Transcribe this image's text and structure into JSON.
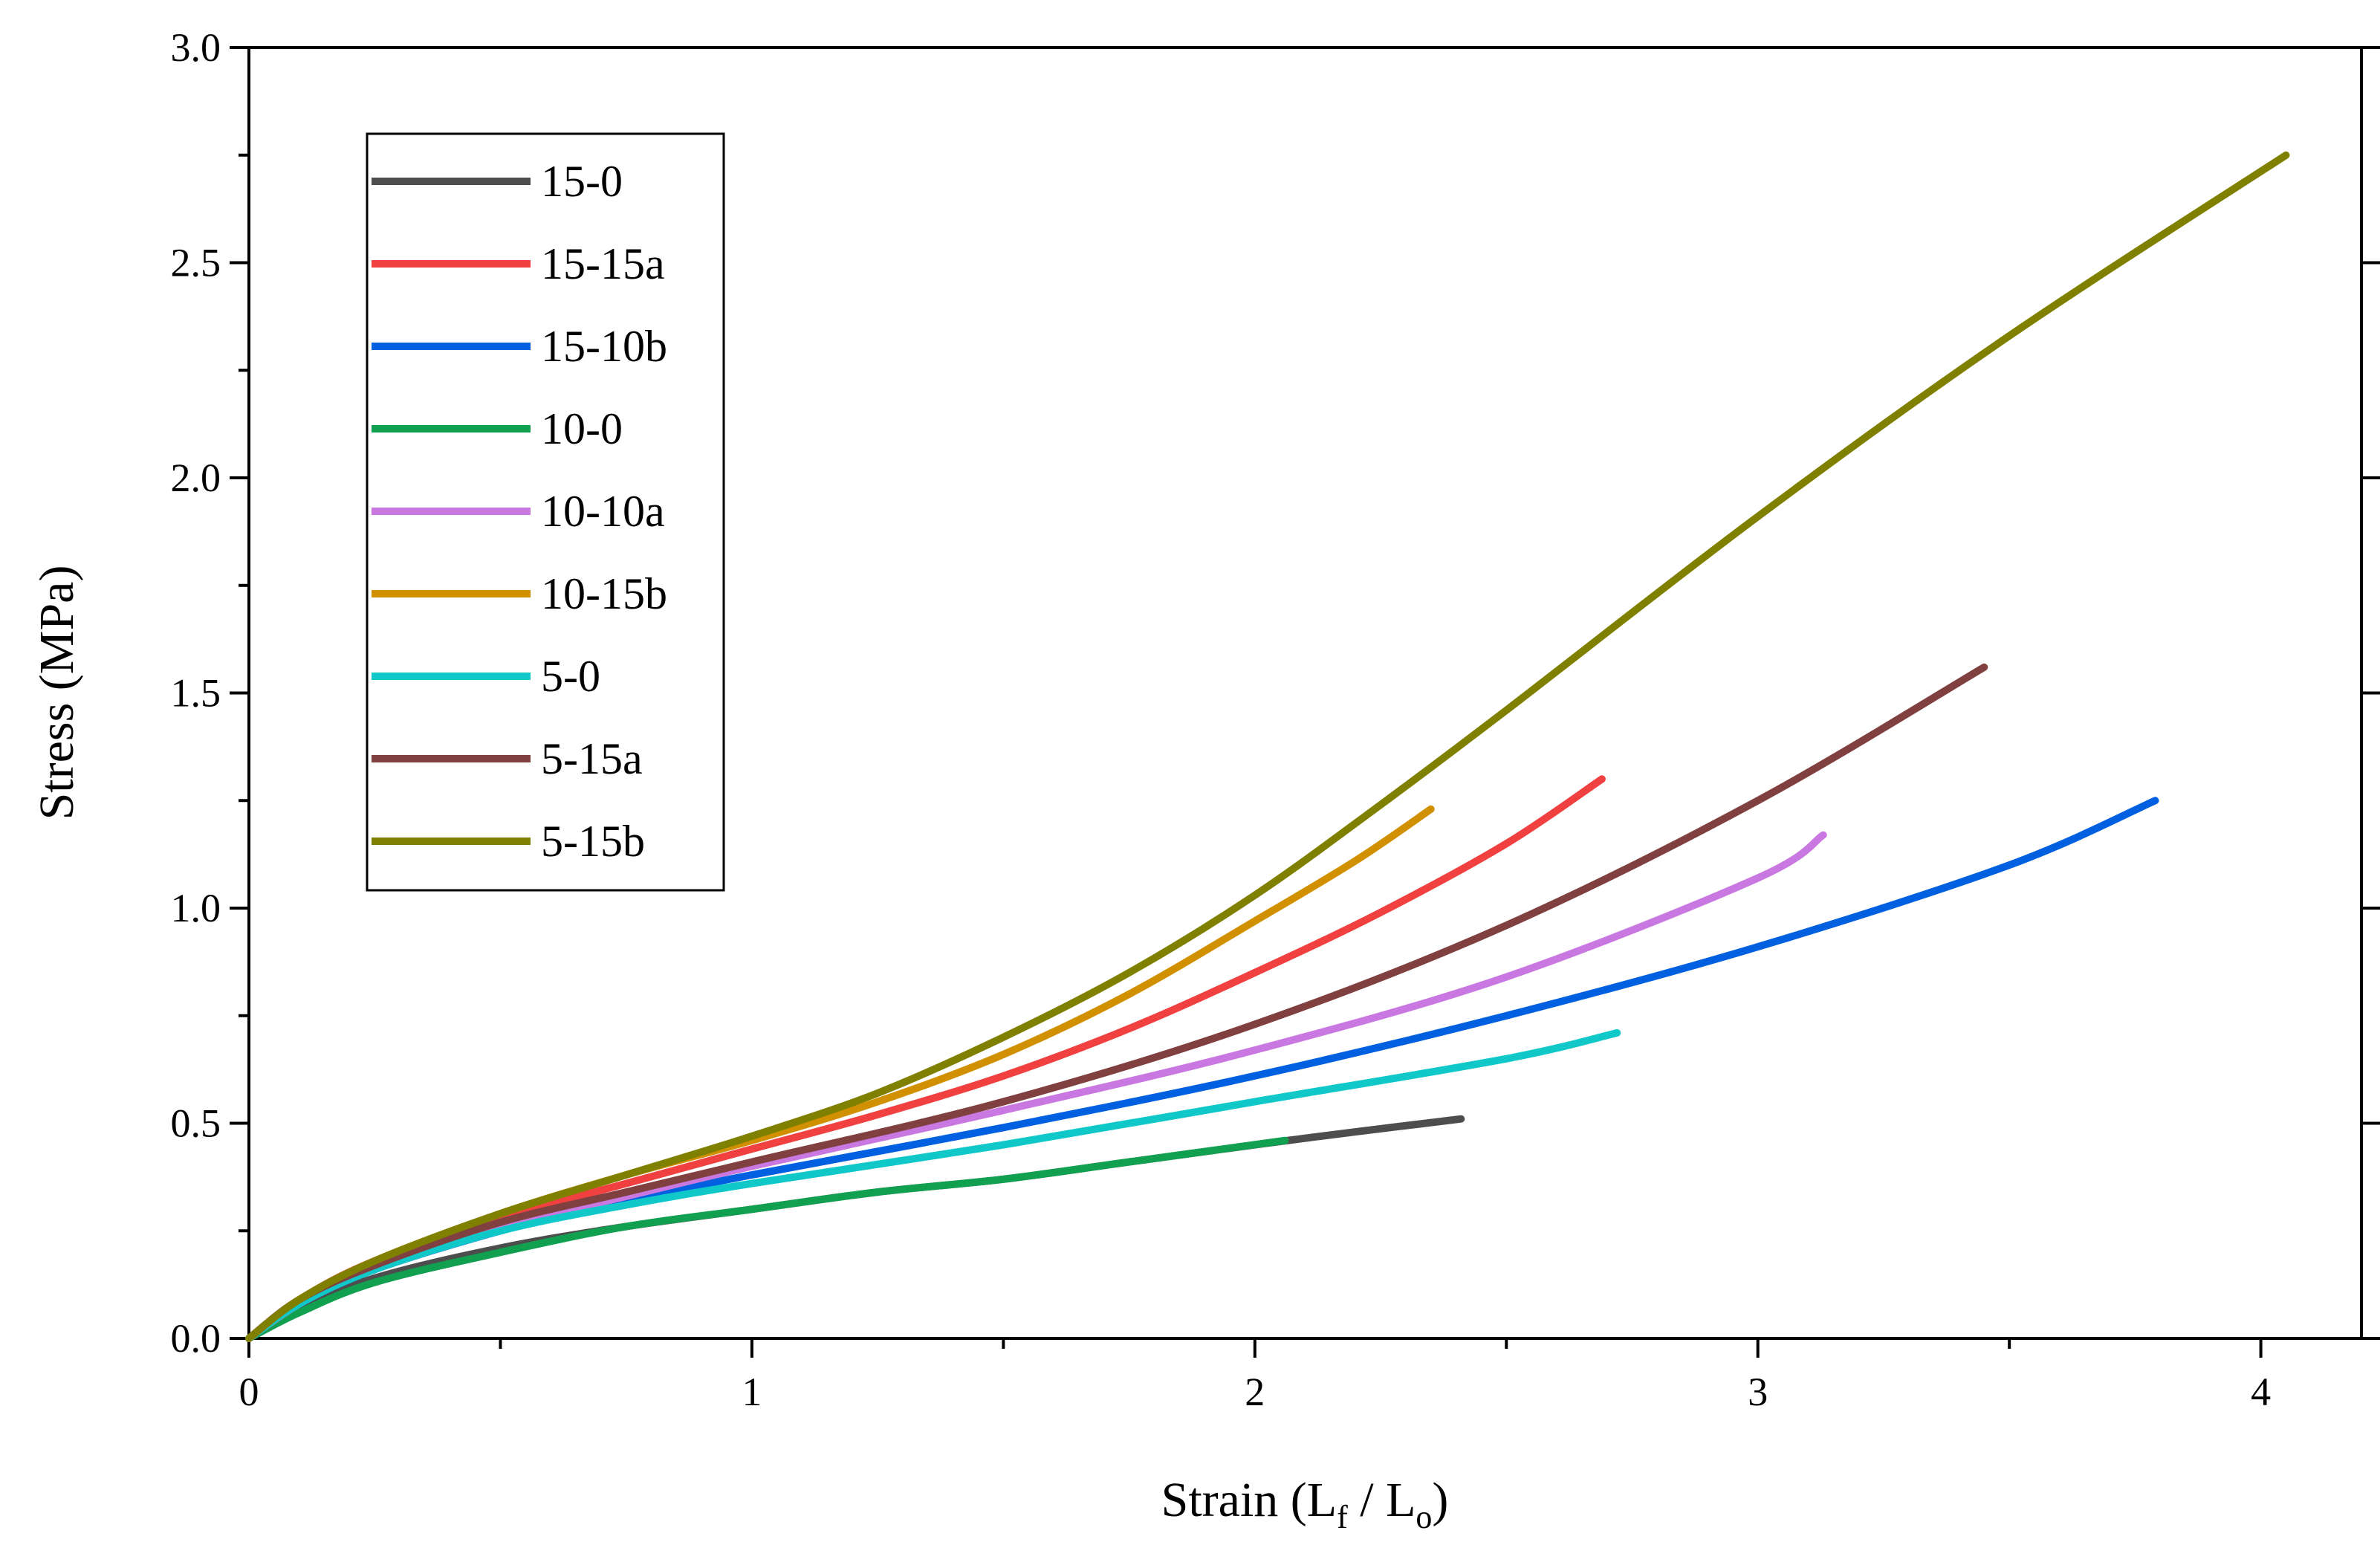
{
  "chart_data": {
    "type": "line",
    "title": "",
    "xlabel": "Strain (L",
    "xlabel_sub1": "f",
    "xlabel_mid": " / L",
    "xlabel_sub2": "o",
    "xlabel_end": ")",
    "ylabel": "Stress (MPa)",
    "xlim": [
      0,
      4.2
    ],
    "ylim": [
      0,
      3.0
    ],
    "x_ticks": [
      0,
      1,
      2,
      3,
      4
    ],
    "x_tick_labels": [
      "0",
      "1",
      "2",
      "3",
      "4"
    ],
    "x_minor_ticks": [
      0.5,
      1.5,
      2.5,
      3.5
    ],
    "y_ticks": [
      0,
      0.5,
      1.0,
      1.5,
      2.0,
      2.5,
      3.0
    ],
    "y_tick_labels": [
      "0.0",
      "0.5",
      "1.0",
      "1.5",
      "2.0",
      "2.5",
      "3.0"
    ],
    "y_minor_ticks": [
      0.25,
      0.75,
      1.25,
      1.75,
      2.25,
      2.75
    ],
    "legend_position": "top-left",
    "series": [
      {
        "name": "15-0",
        "color": "#4d4d4d",
        "x": [
          0,
          0.1,
          0.25,
          0.5,
          0.75,
          1.0,
          1.25,
          1.5,
          1.75,
          2.0,
          2.2,
          2.41
        ],
        "y": [
          0,
          0.07,
          0.14,
          0.21,
          0.26,
          0.3,
          0.34,
          0.37,
          0.41,
          0.45,
          0.48,
          0.51
        ]
      },
      {
        "name": "15-15a",
        "color": "#f04040",
        "x": [
          0,
          0.1,
          0.25,
          0.5,
          0.75,
          1.0,
          1.25,
          1.5,
          1.75,
          2.0,
          2.25,
          2.5,
          2.69
        ],
        "y": [
          0,
          0.09,
          0.18,
          0.28,
          0.36,
          0.44,
          0.52,
          0.61,
          0.72,
          0.85,
          0.99,
          1.15,
          1.3
        ]
      },
      {
        "name": "15-10b",
        "color": "#0060e0",
        "x": [
          0,
          0.1,
          0.25,
          0.5,
          0.75,
          1.0,
          1.5,
          2.0,
          2.5,
          3.0,
          3.5,
          3.79
        ],
        "y": [
          0,
          0.08,
          0.16,
          0.25,
          0.32,
          0.38,
          0.49,
          0.61,
          0.75,
          0.91,
          1.1,
          1.25
        ]
      },
      {
        "name": "10-0",
        "color": "#10a050",
        "x": [
          0,
          0.1,
          0.25,
          0.5,
          0.75,
          1.0,
          1.25,
          1.5,
          1.75,
          2.06
        ],
        "y": [
          0,
          0.06,
          0.13,
          0.2,
          0.26,
          0.3,
          0.34,
          0.37,
          0.41,
          0.46
        ]
      },
      {
        "name": "10-10a",
        "color": "#c878e0",
        "x": [
          0,
          0.1,
          0.25,
          0.5,
          0.75,
          1.0,
          1.5,
          2.0,
          2.5,
          3.0,
          3.13
        ],
        "y": [
          0,
          0.08,
          0.17,
          0.26,
          0.33,
          0.4,
          0.53,
          0.67,
          0.84,
          1.07,
          1.17
        ]
      },
      {
        "name": "10-15b",
        "color": "#d09000",
        "x": [
          0,
          0.1,
          0.25,
          0.5,
          0.75,
          1.0,
          1.25,
          1.5,
          1.75,
          2.0,
          2.2,
          2.35
        ],
        "y": [
          0,
          0.09,
          0.18,
          0.29,
          0.38,
          0.46,
          0.55,
          0.66,
          0.8,
          0.97,
          1.11,
          1.23
        ]
      },
      {
        "name": "5-0",
        "color": "#10c8c8",
        "x": [
          0,
          0.1,
          0.25,
          0.5,
          0.75,
          1.0,
          1.5,
          2.0,
          2.5,
          2.72
        ],
        "y": [
          0,
          0.08,
          0.16,
          0.25,
          0.31,
          0.36,
          0.45,
          0.55,
          0.65,
          0.71
        ]
      },
      {
        "name": "5-15a",
        "color": "#804040",
        "x": [
          0,
          0.1,
          0.25,
          0.5,
          0.75,
          1.0,
          1.5,
          2.0,
          2.5,
          3.0,
          3.45
        ],
        "y": [
          0,
          0.09,
          0.17,
          0.27,
          0.34,
          0.41,
          0.55,
          0.73,
          0.96,
          1.25,
          1.56
        ]
      },
      {
        "name": "5-15b",
        "color": "#808000",
        "x": [
          0,
          0.1,
          0.25,
          0.5,
          0.75,
          1.0,
          1.25,
          1.5,
          1.75,
          2.0,
          2.25,
          2.5,
          3.0,
          3.5,
          4.05
        ],
        "y": [
          0,
          0.09,
          0.18,
          0.29,
          0.38,
          0.47,
          0.57,
          0.7,
          0.85,
          1.03,
          1.24,
          1.46,
          1.91,
          2.33,
          2.75
        ]
      }
    ]
  }
}
